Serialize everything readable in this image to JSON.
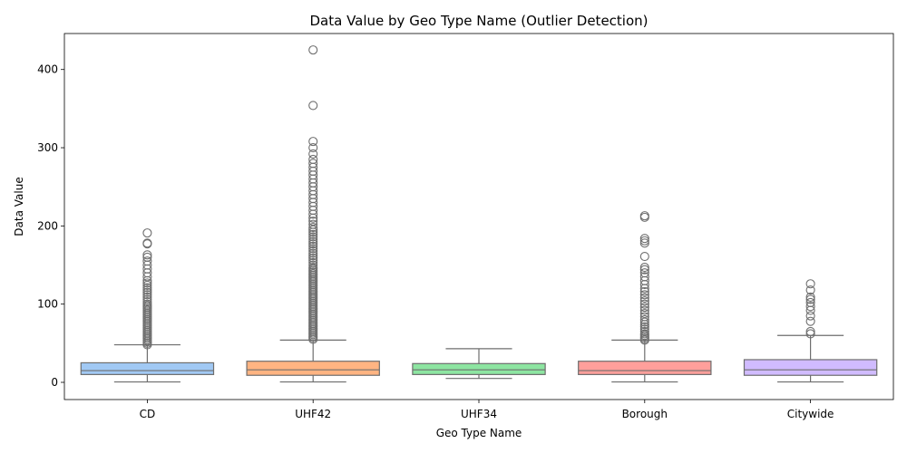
{
  "chart_data": {
    "type": "box",
    "title": "Data Value by Geo Type Name (Outlier Detection)",
    "xlabel": "Geo Type Name",
    "ylabel": "Data Value",
    "ylim": [
      -22,
      446
    ],
    "yticks": [
      0,
      100,
      200,
      300,
      400
    ],
    "grid": false,
    "legend": "none",
    "categories": [
      "CD",
      "UHF42",
      "UHF34",
      "Borough",
      "Citywide"
    ],
    "series": [
      {
        "category": "CD",
        "color": "#a1c9f4",
        "whisker_low": 0.5,
        "q1": 10,
        "median": 15,
        "q3": 25,
        "whisker_high": 48,
        "outliers": [
          48,
          50,
          52,
          54,
          56,
          58,
          60,
          62,
          64,
          66,
          68,
          70,
          72,
          74,
          76,
          78,
          80,
          82,
          84,
          86,
          88,
          90,
          92,
          94,
          96,
          98,
          100,
          103,
          106,
          109,
          112,
          115,
          118,
          121,
          124,
          127,
          130,
          135,
          140,
          145,
          150,
          155,
          160,
          163,
          177,
          178,
          191
        ]
      },
      {
        "category": "UHF42",
        "color": "#ffb482",
        "whisker_low": 0.5,
        "q1": 9,
        "median": 16,
        "q3": 27,
        "whisker_high": 54,
        "outliers": [
          55,
          57,
          59,
          61,
          63,
          65,
          67,
          69,
          71,
          73,
          75,
          77,
          79,
          81,
          83,
          85,
          87,
          89,
          91,
          93,
          95,
          97,
          99,
          101,
          103,
          105,
          107,
          109,
          111,
          113,
          115,
          117,
          119,
          121,
          123,
          125,
          127,
          129,
          131,
          133,
          135,
          137,
          139,
          141,
          143,
          145,
          147,
          150,
          153,
          156,
          159,
          162,
          165,
          168,
          171,
          174,
          177,
          180,
          183,
          186,
          189,
          192,
          195,
          198,
          202,
          206,
          210,
          215,
          220,
          225,
          230,
          235,
          240,
          245,
          250,
          255,
          260,
          265,
          270,
          275,
          280,
          285,
          292,
          300,
          308,
          354,
          425
        ]
      },
      {
        "category": "UHF34",
        "color": "#8de5a1",
        "whisker_low": 5,
        "q1": 10,
        "median": 16,
        "q3": 24,
        "whisker_high": 43,
        "outliers": []
      },
      {
        "category": "Borough",
        "color": "#ff9f9b",
        "whisker_low": 0.5,
        "q1": 10,
        "median": 15,
        "q3": 27,
        "whisker_high": 54,
        "outliers": [
          54,
          56,
          58,
          60,
          62,
          65,
          68,
          71,
          74,
          77,
          80,
          84,
          88,
          92,
          96,
          100,
          104,
          108,
          112,
          116,
          120,
          125,
          130,
          135,
          140,
          144,
          147,
          161,
          178,
          181,
          184,
          211,
          213
        ]
      },
      {
        "category": "Citywide",
        "color": "#d0bbff",
        "whisker_low": 0.5,
        "q1": 9,
        "median": 16,
        "q3": 29,
        "whisker_high": 60,
        "outliers": [
          62,
          65,
          78,
          85,
          92,
          97,
          102,
          106,
          109,
          118,
          126
        ]
      }
    ]
  }
}
